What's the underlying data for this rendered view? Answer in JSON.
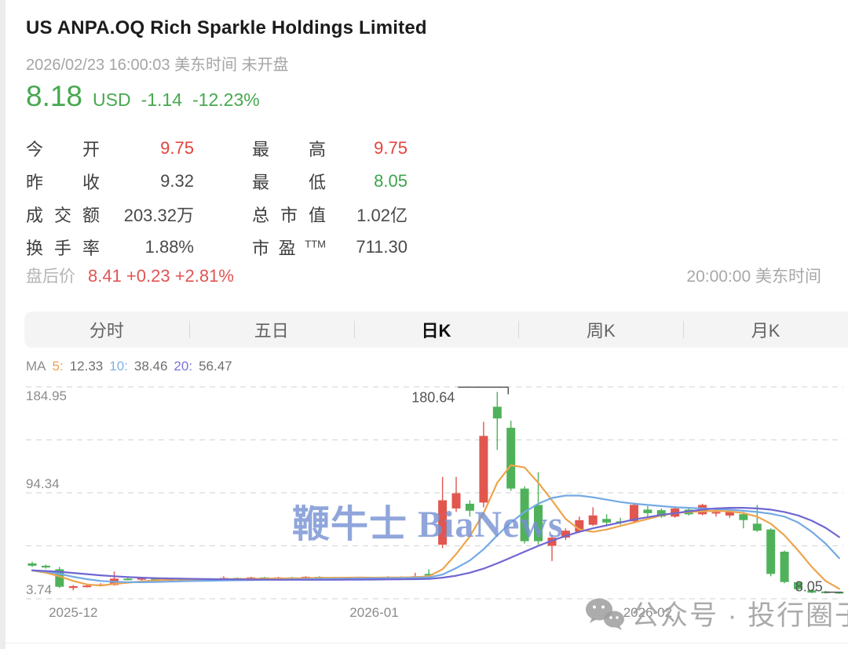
{
  "header": {
    "title": "US ANPA.OQ  Rich Sparkle Holdings Limited",
    "datetime_line": "2026/02/23 16:00:03 美东时间 未开盘",
    "price": "8.18",
    "currency": "USD",
    "change": "-1.14",
    "change_pct": "-12.23%",
    "price_color": "#47a84f"
  },
  "stats": {
    "rows": [
      {
        "label": "今开",
        "value": "9.75",
        "color": "red"
      },
      {
        "label": "最高",
        "value": "9.75",
        "color": "red"
      },
      {
        "label": "昨收",
        "value": "9.32",
        "color": "dark"
      },
      {
        "label": "最低",
        "value": "8.05",
        "color": "green"
      },
      {
        "label": "成交额",
        "value": "203.32万",
        "color": "dark"
      },
      {
        "label": "总市值",
        "value": "1.02亿",
        "color": "dark"
      },
      {
        "label": "换手率",
        "value": "1.88%",
        "color": "dark"
      },
      {
        "label": "市盈",
        "label_sup": "TTM",
        "value": "711.30",
        "color": "dark"
      }
    ],
    "after_hours_label": "盘后价",
    "after_hours_value": "8.41 +0.23 +2.81%",
    "after_hours_time": "20:00:00 美东时间"
  },
  "tabs": [
    {
      "label": "分时",
      "active": false
    },
    {
      "label": "五日",
      "active": false
    },
    {
      "label": "日K",
      "active": true
    },
    {
      "label": "周K",
      "active": false
    },
    {
      "label": "月K",
      "active": false
    }
  ],
  "watermarks": {
    "center": "鞭牛士 BiaNews",
    "bottom": "公众号 · 投行圈子"
  },
  "chart_data": {
    "type": "candlestick",
    "legend_prefix": "MA",
    "ma_legend": [
      {
        "period": "5:",
        "value": "12.33",
        "color": "#f0a050"
      },
      {
        "period": "10:",
        "value": "38.46",
        "color": "#7fb0e8"
      },
      {
        "period": "20:",
        "value": "56.47",
        "color": "#7a74d8"
      }
    ],
    "up_color": "#e1564e",
    "down_color": "#4fb25a",
    "grid_color": "#d9d9d9",
    "y_axis": {
      "min": 3.74,
      "max": 184.95,
      "gridlines": [
        184.95,
        139.645,
        94.345,
        49.04,
        3.74
      ],
      "labels": [
        {
          "text": "184.95",
          "price": 184.95
        },
        {
          "text": "94.34",
          "price": 94.34
        },
        {
          "text": "3.74",
          "price": 3.74
        }
      ]
    },
    "x_axis": {
      "labels": [
        {
          "text": "2025-12",
          "index": 3
        },
        {
          "text": "2026-01",
          "index": 25
        },
        {
          "text": "2026-02",
          "index": 45
        }
      ]
    },
    "annotations": [
      {
        "text": "180.64",
        "price": 180.64,
        "index": 34,
        "kind": "peak"
      },
      {
        "text": "8.05",
        "price": 8.05,
        "index": 59,
        "kind": "low"
      }
    ],
    "candles": [
      [
        34,
        35.5,
        31,
        32
      ],
      [
        32,
        33,
        29.5,
        30.5
      ],
      [
        29,
        31,
        13,
        14
      ],
      [
        13,
        15.5,
        11,
        14.5
      ],
      [
        14.5,
        16,
        13.5,
        15
      ],
      [
        15,
        17,
        14.5,
        16
      ],
      [
        15.5,
        27,
        15,
        21
      ],
      [
        21,
        22.5,
        19.5,
        20
      ],
      [
        20,
        22,
        19,
        21.5
      ],
      [
        21.5,
        22,
        19,
        19.5
      ],
      [
        19.5,
        21,
        19,
        20.5
      ],
      [
        20.5,
        21,
        19.5,
        20
      ],
      [
        20,
        21.5,
        19.5,
        21
      ],
      [
        21,
        21.5,
        19.5,
        20
      ],
      [
        20,
        23,
        19.8,
        21.5
      ],
      [
        21.5,
        22,
        20,
        20.5
      ],
      [
        20.5,
        22.5,
        20,
        22
      ],
      [
        22,
        22.5,
        20.5,
        21
      ],
      [
        21,
        22.5,
        20.5,
        22
      ],
      [
        22,
        22.5,
        21,
        21.5
      ],
      [
        21.5,
        23,
        21,
        22.5
      ],
      [
        22.5,
        23,
        21,
        21.5
      ],
      [
        21.5,
        22.5,
        21,
        22
      ],
      [
        22,
        22.5,
        20.5,
        21
      ],
      [
        21,
        22.5,
        20.5,
        22
      ],
      [
        22,
        22.5,
        21,
        21.5
      ],
      [
        21.5,
        23,
        21,
        22.5
      ],
      [
        22.5,
        23,
        21.5,
        22
      ],
      [
        22,
        26,
        21.5,
        23
      ],
      [
        25,
        29,
        20,
        24
      ],
      [
        50,
        108,
        47,
        88
      ],
      [
        81,
        108,
        78,
        94
      ],
      [
        85,
        88,
        74,
        79
      ],
      [
        86,
        155,
        82,
        143
      ],
      [
        168,
        180.64,
        131,
        158
      ],
      [
        150,
        156,
        96,
        98
      ],
      [
        98,
        100,
        51,
        53
      ],
      [
        84,
        112,
        50,
        53
      ],
      [
        49,
        58,
        36,
        56
      ],
      [
        56,
        64,
        54,
        62
      ],
      [
        61,
        74,
        60,
        71
      ],
      [
        67,
        82,
        66,
        75
      ],
      [
        72,
        76,
        66,
        69
      ],
      [
        70,
        73,
        67,
        69
      ],
      [
        70,
        86,
        69,
        84
      ],
      [
        80,
        83,
        74,
        77
      ],
      [
        79.5,
        81,
        73,
        74
      ],
      [
        74,
        83,
        73,
        81
      ],
      [
        80,
        82,
        75,
        76
      ],
      [
        76,
        85,
        75,
        84
      ],
      [
        77,
        80,
        74,
        78
      ],
      [
        75,
        79,
        73,
        78
      ],
      [
        76,
        78,
        64,
        71
      ],
      [
        68,
        84,
        61,
        62
      ],
      [
        63,
        64,
        23,
        25
      ],
      [
        44,
        45,
        17,
        18
      ],
      [
        18,
        19,
        11,
        12
      ],
      [
        11,
        12,
        8.5,
        9
      ],
      [
        10,
        10.5,
        8.3,
        8.6
      ],
      [
        9.75,
        9.75,
        8.05,
        8.18
      ]
    ],
    "ma_series": [
      {
        "name": "MA5",
        "color": "#eda44d",
        "values": [
          28,
          26,
          23,
          19,
          16,
          15,
          16.5,
          17.5,
          18.5,
          19.5,
          20,
          20.2,
          20.3,
          20.4,
          20.5,
          20.6,
          20.8,
          21,
          21.1,
          21.2,
          21.4,
          21.6,
          21.7,
          21.8,
          21.9,
          21.8,
          21.9,
          22,
          22.2,
          23,
          29,
          42,
          57,
          77,
          103,
          118,
          116,
          103,
          88,
          72,
          63,
          61,
          63,
          66,
          69,
          72,
          75,
          77,
          78,
          78.5,
          79,
          78.5,
          77,
          74,
          68,
          58,
          45,
          31,
          19,
          12.33
        ]
      },
      {
        "name": "MA10",
        "color": "#74aae4",
        "values": [
          28,
          27,
          25,
          22.5,
          20.5,
          19,
          18.3,
          18,
          17.9,
          18.1,
          18.4,
          18.7,
          19,
          19.2,
          19.4,
          19.6,
          19.8,
          20,
          20.1,
          20.3,
          20.5,
          20.7,
          20.8,
          21,
          21.1,
          21.2,
          21.3,
          21.4,
          21.6,
          21.9,
          24.5,
          30,
          36.5,
          46,
          58,
          69,
          78,
          85,
          90,
          92,
          92,
          90.5,
          88.5,
          86.5,
          85,
          84,
          83,
          82,
          81.5,
          81,
          80.5,
          80,
          79,
          78,
          76.5,
          74,
          69,
          61,
          51,
          38.46
        ]
      },
      {
        "name": "MA20",
        "color": "#6f66d2",
        "values": [
          28,
          27.5,
          26.8,
          25.8,
          24.8,
          23.8,
          23,
          22.3,
          21.8,
          21.4,
          21.1,
          20.9,
          20.7,
          20.5,
          20.4,
          20.3,
          20.2,
          20.1,
          20,
          20,
          20,
          20,
          20,
          20.1,
          20.1,
          20.2,
          20.3,
          20.4,
          20.5,
          20.7,
          21.8,
          23.5,
          26,
          29.5,
          34,
          39,
          44,
          49,
          53.5,
          57.5,
          61,
          64,
          66.5,
          69,
          71.5,
          73.5,
          75.5,
          77,
          78.5,
          80,
          81,
          81.5,
          81.5,
          81,
          80,
          78,
          75,
          70.5,
          64.5,
          56.47
        ]
      }
    ]
  }
}
